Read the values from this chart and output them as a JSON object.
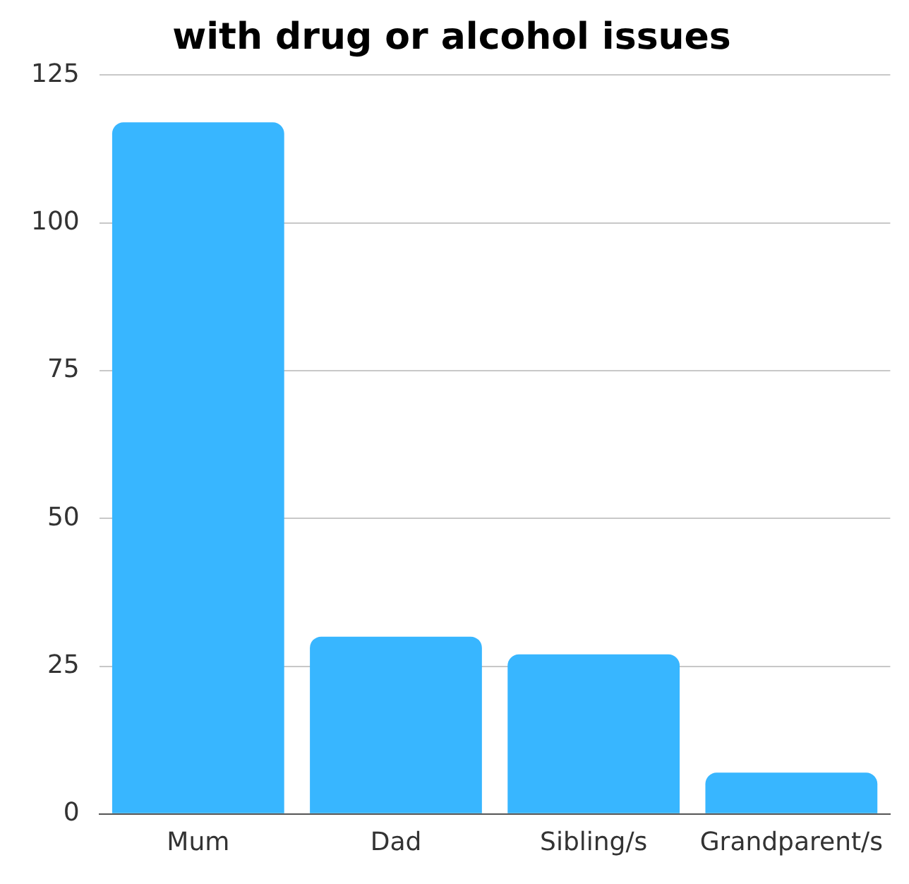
{
  "chart_data": {
    "type": "bar",
    "title": "with drug or alcohol issues",
    "categories": [
      "Mum",
      "Dad",
      "Sibling/s",
      "Grandparent/s"
    ],
    "values": [
      117,
      30,
      27,
      7
    ],
    "color": "#38b6ff",
    "ylim": [
      0,
      125
    ],
    "yticks": [
      0,
      25,
      50,
      75,
      100,
      125
    ],
    "grid": "y",
    "legend": false
  }
}
